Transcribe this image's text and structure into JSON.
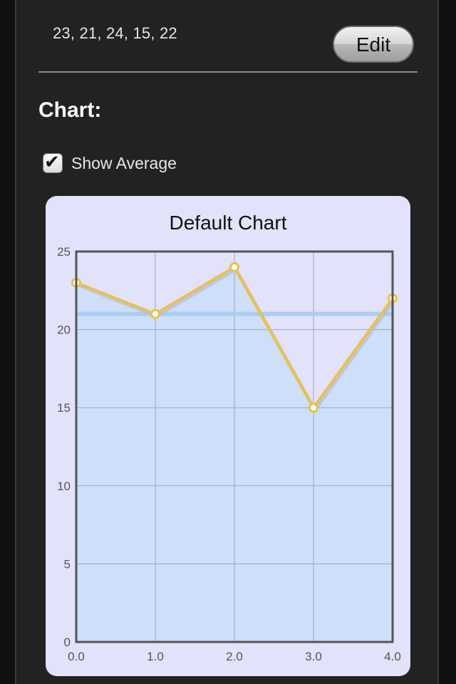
{
  "data_values_text": "23, 21, 24, 15, 22",
  "edit_button_label": "Edit",
  "chart_section_title": "Chart:",
  "show_average": {
    "label": "Show Average",
    "checked": true
  },
  "colors": {
    "panel_background": "#222222",
    "chart_card_background": "#e2e2fb",
    "fill_area": "#cddff9",
    "series_line": "#e8c24a",
    "average_line": "#a9cbf0",
    "axis": "#555555",
    "grid": "#9aa6c4"
  },
  "chart_data": {
    "type": "area",
    "title": "Default Chart",
    "x": [
      0,
      1,
      2,
      3,
      4
    ],
    "series": [
      {
        "values": [
          23,
          21,
          24,
          15,
          22
        ]
      }
    ],
    "average": 21,
    "xlim": [
      0,
      4
    ],
    "ylim": [
      0,
      25
    ],
    "x_ticks": [
      "0.0",
      "1.0",
      "2.0",
      "3.0",
      "4.0"
    ],
    "y_ticks": [
      "0",
      "5",
      "10",
      "15",
      "20",
      "25"
    ],
    "grid": true,
    "markers": true
  }
}
